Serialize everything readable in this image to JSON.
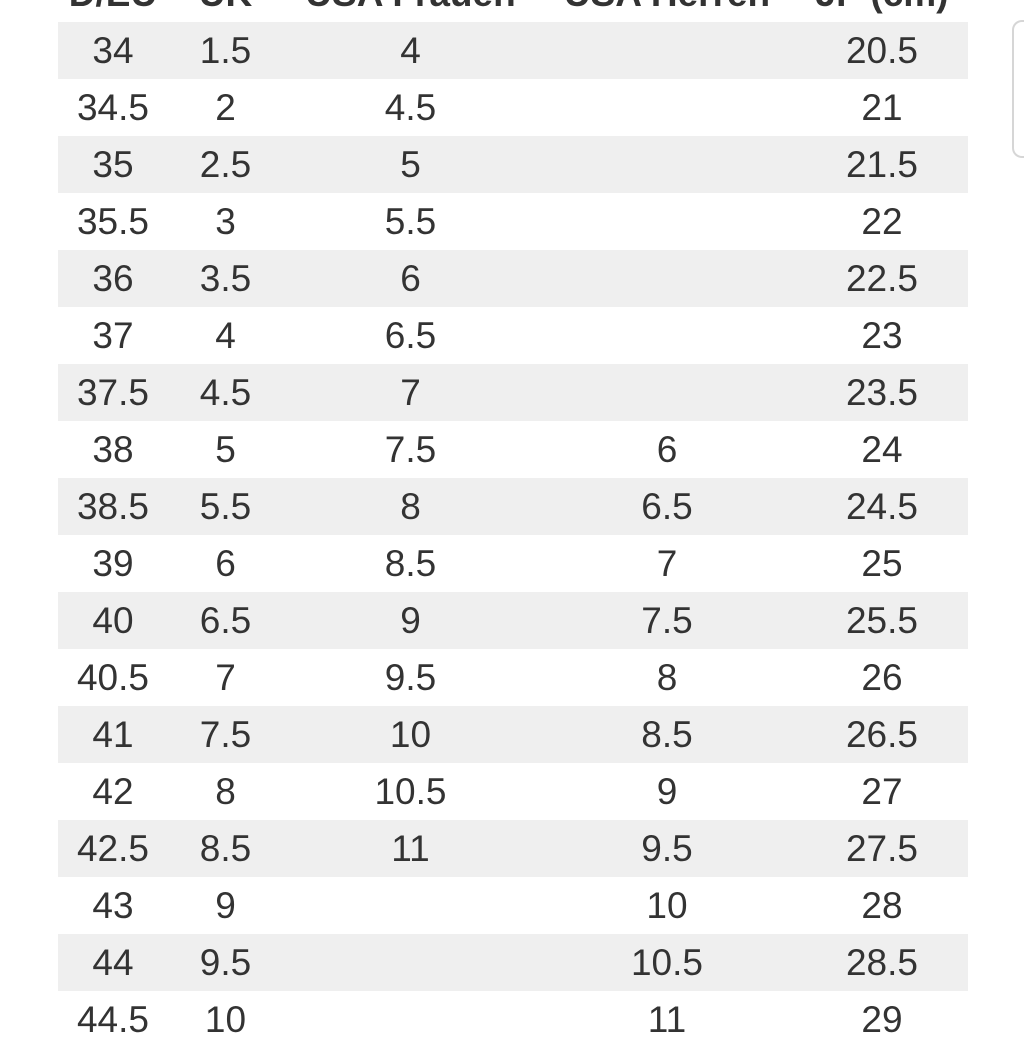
{
  "table": {
    "headers": [
      "D/EU",
      "UK",
      "USA Frauen",
      "USA Herren",
      "JP (cm)"
    ],
    "rows": [
      [
        "34",
        "1.5",
        "4",
        "",
        "20.5"
      ],
      [
        "34.5",
        "2",
        "4.5",
        "",
        "21"
      ],
      [
        "35",
        "2.5",
        "5",
        "",
        "21.5"
      ],
      [
        "35.5",
        "3",
        "5.5",
        "",
        "22"
      ],
      [
        "36",
        "3.5",
        "6",
        "",
        "22.5"
      ],
      [
        "37",
        "4",
        "6.5",
        "",
        "23"
      ],
      [
        "37.5",
        "4.5",
        "7",
        "",
        "23.5"
      ],
      [
        "38",
        "5",
        "7.5",
        "6",
        "24"
      ],
      [
        "38.5",
        "5.5",
        "8",
        "6.5",
        "24.5"
      ],
      [
        "39",
        "6",
        "8.5",
        "7",
        "25"
      ],
      [
        "40",
        "6.5",
        "9",
        "7.5",
        "25.5"
      ],
      [
        "40.5",
        "7",
        "9.5",
        "8",
        "26"
      ],
      [
        "41",
        "7.5",
        "10",
        "8.5",
        "26.5"
      ],
      [
        "42",
        "8",
        "10.5",
        "9",
        "27"
      ],
      [
        "42.5",
        "8.5",
        "11",
        "9.5",
        "27.5"
      ],
      [
        "43",
        "9",
        "",
        "10",
        "28"
      ],
      [
        "44",
        "9.5",
        "",
        "10.5",
        "28.5"
      ],
      [
        "44.5",
        "10",
        "",
        "11",
        "29"
      ]
    ]
  },
  "colors": {
    "text": "#333333",
    "row_shade": "#efefef",
    "background": "#ffffff"
  }
}
